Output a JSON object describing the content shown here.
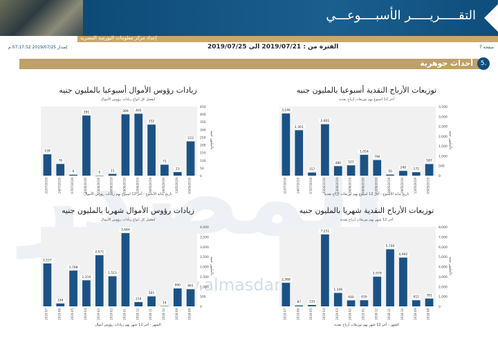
{
  "header": {
    "title": "التقـــــريـــــر الأسبــــوعـــي",
    "source": "إعداد مركز معلومات البورصة المصرية"
  },
  "period": {
    "text": "الفترة من : 2019/07/21 الى 2019/07/25",
    "page": "صفحة 7",
    "issued": "إصدار 2019/07/25 07:17:52 م"
  },
  "section": {
    "num": "5.",
    "label": "أحداث جوهرية"
  },
  "watermark": {
    "text": "المصدر",
    "url": "www.almasdar.com"
  },
  "colors": {
    "bar": "#1b5285",
    "plotbg": "#f1f1f1"
  },
  "chart_data": [
    {
      "id": "weekly-dividends",
      "type": "bar",
      "title": "توزيعات الأرباح النقدية أسبوعيا بالمليون جنيه",
      "subtitle": "آخر 12 اسبوع بهم توزيعات أرباح نقدية",
      "xlabel": "تاريخ بداية الأسبوع - آخر 12 اسبوع بهم توزيعات أرباح نقدية",
      "ylabel": "بالمليون جنيه",
      "ylim": [
        0,
        3500
      ],
      "yticks": [
        "0",
        "500",
        "1,000",
        "1,500",
        "2,000",
        "2,500",
        "3,000",
        "3,500"
      ],
      "categories": [
        "21/07/2019",
        "14/07/2019",
        "07/07/2019",
        "30/06/2019",
        "23/06/2019",
        "16/06/2019",
        "09/06/2019",
        "02/06/2019",
        "26/05/2019",
        "19/05/2019",
        "12/05/2019",
        "05/05/2019"
      ],
      "values": [
        3146,
        2301,
        157,
        2601,
        480,
        521,
        1054,
        790,
        50,
        240,
        172,
        587
      ],
      "labels": [
        "3,146",
        "2,301",
        "157",
        "2,601",
        "480",
        "521",
        "1,054",
        "790",
        "50",
        "240",
        "172",
        "587"
      ]
    },
    {
      "id": "weekly-capital",
      "type": "bar",
      "title": "زيادات رؤوس الأموال أسبوعيا بالمليون جنيه",
      "subtitle": "لتفعيل كل أنواع زيادات رؤوس الأموال",
      "xlabel": "تاريخ بداية الأسبوع - آخر 12 اسبوع بهم زيادات رؤوس الأموال",
      "ylabel": "بالمليون جنيه",
      "ylim": [
        0,
        450
      ],
      "yticks": [
        "0",
        "50",
        "100",
        "150",
        "200",
        "250",
        "300",
        "350",
        "400",
        "450"
      ],
      "categories": [
        "21/07/2019",
        "14/07/2019",
        "07/07/2019",
        "30/06/2019",
        "23/06/2019",
        "16/06/2019",
        "09/06/2019",
        "02/06/2019",
        "26/05/2019",
        "19/05/2019",
        "12/05/2019",
        "05/05/2019"
      ],
      "values": [
        139,
        76,
        6,
        391,
        0,
        11,
        399,
        403,
        332,
        71,
        23,
        223
      ],
      "labels": [
        "139",
        "76",
        "6",
        "391",
        "0",
        "11",
        "399",
        "403",
        "332",
        "71",
        "23",
        "223"
      ]
    },
    {
      "id": "monthly-dividends",
      "type": "bar",
      "title": "توزيعات الأرباح النقدية شهريا بالمليون جنيه",
      "subtitle": "آخر 12 شهر بهم توزيعات أرباح نقدية",
      "xlabel": "الشهر - آخر 12 شهر بهم توزيعات أرباح نقدية",
      "ylabel": "بالمليون جنيه",
      "ylim": [
        0,
        8000
      ],
      "yticks": [
        "0",
        "1,000",
        "2,000",
        "3,000",
        "4,000",
        "5,000",
        "6,000",
        "7,000",
        "8,000"
      ],
      "categories": [
        "2019-07",
        "2019-06",
        "2019-05",
        "2019-04",
        "2019-03",
        "2019-02",
        "2019-01",
        "2018-12",
        "2018-11",
        "2018-10",
        "2018-09",
        "2018-08"
      ],
      "values": [
        2368,
        87,
        135,
        7231,
        1346,
        600,
        616,
        2979,
        5740,
        4902,
        612,
        781
      ],
      "labels": [
        "2,368",
        "87",
        "135",
        "7,231",
        "1,346",
        "600",
        "616",
        "2,979",
        "5,740",
        "4,902",
        "612",
        "781"
      ]
    },
    {
      "id": "monthly-capital",
      "type": "bar",
      "title": "زيادات رؤوس الأموال شهريا بالمليون جنيه",
      "subtitle": "لتفعيل كل أنواع زيادات رؤوس الأموال",
      "xlabel": "الشهر - آخر 12 شهر بهم زيادات رؤوس أموال",
      "ylabel": "بالمليون جنيه",
      "ylim": [
        0,
        4000
      ],
      "yticks": [
        "0",
        "500",
        "1,000",
        "1,500",
        "2,000",
        "2,500",
        "3,000",
        "3,500",
        "4,000"
      ],
      "categories": [
        "2019-07",
        "2019-06",
        "2019-05",
        "2019-04",
        "2019-03",
        "2019-02",
        "2019-01",
        "2018-12",
        "2018-11",
        "2018-10",
        "2018-09",
        "2018-08"
      ],
      "values": [
        2157,
        144,
        1798,
        1310,
        2571,
        1511,
        3684,
        214,
        501,
        14,
        900,
        861
      ],
      "labels": [
        "2,157",
        "144",
        "1,798",
        "1,310",
        "2,571",
        "1,511",
        "3,684",
        "214",
        "501",
        "14",
        "900",
        "861"
      ]
    }
  ]
}
